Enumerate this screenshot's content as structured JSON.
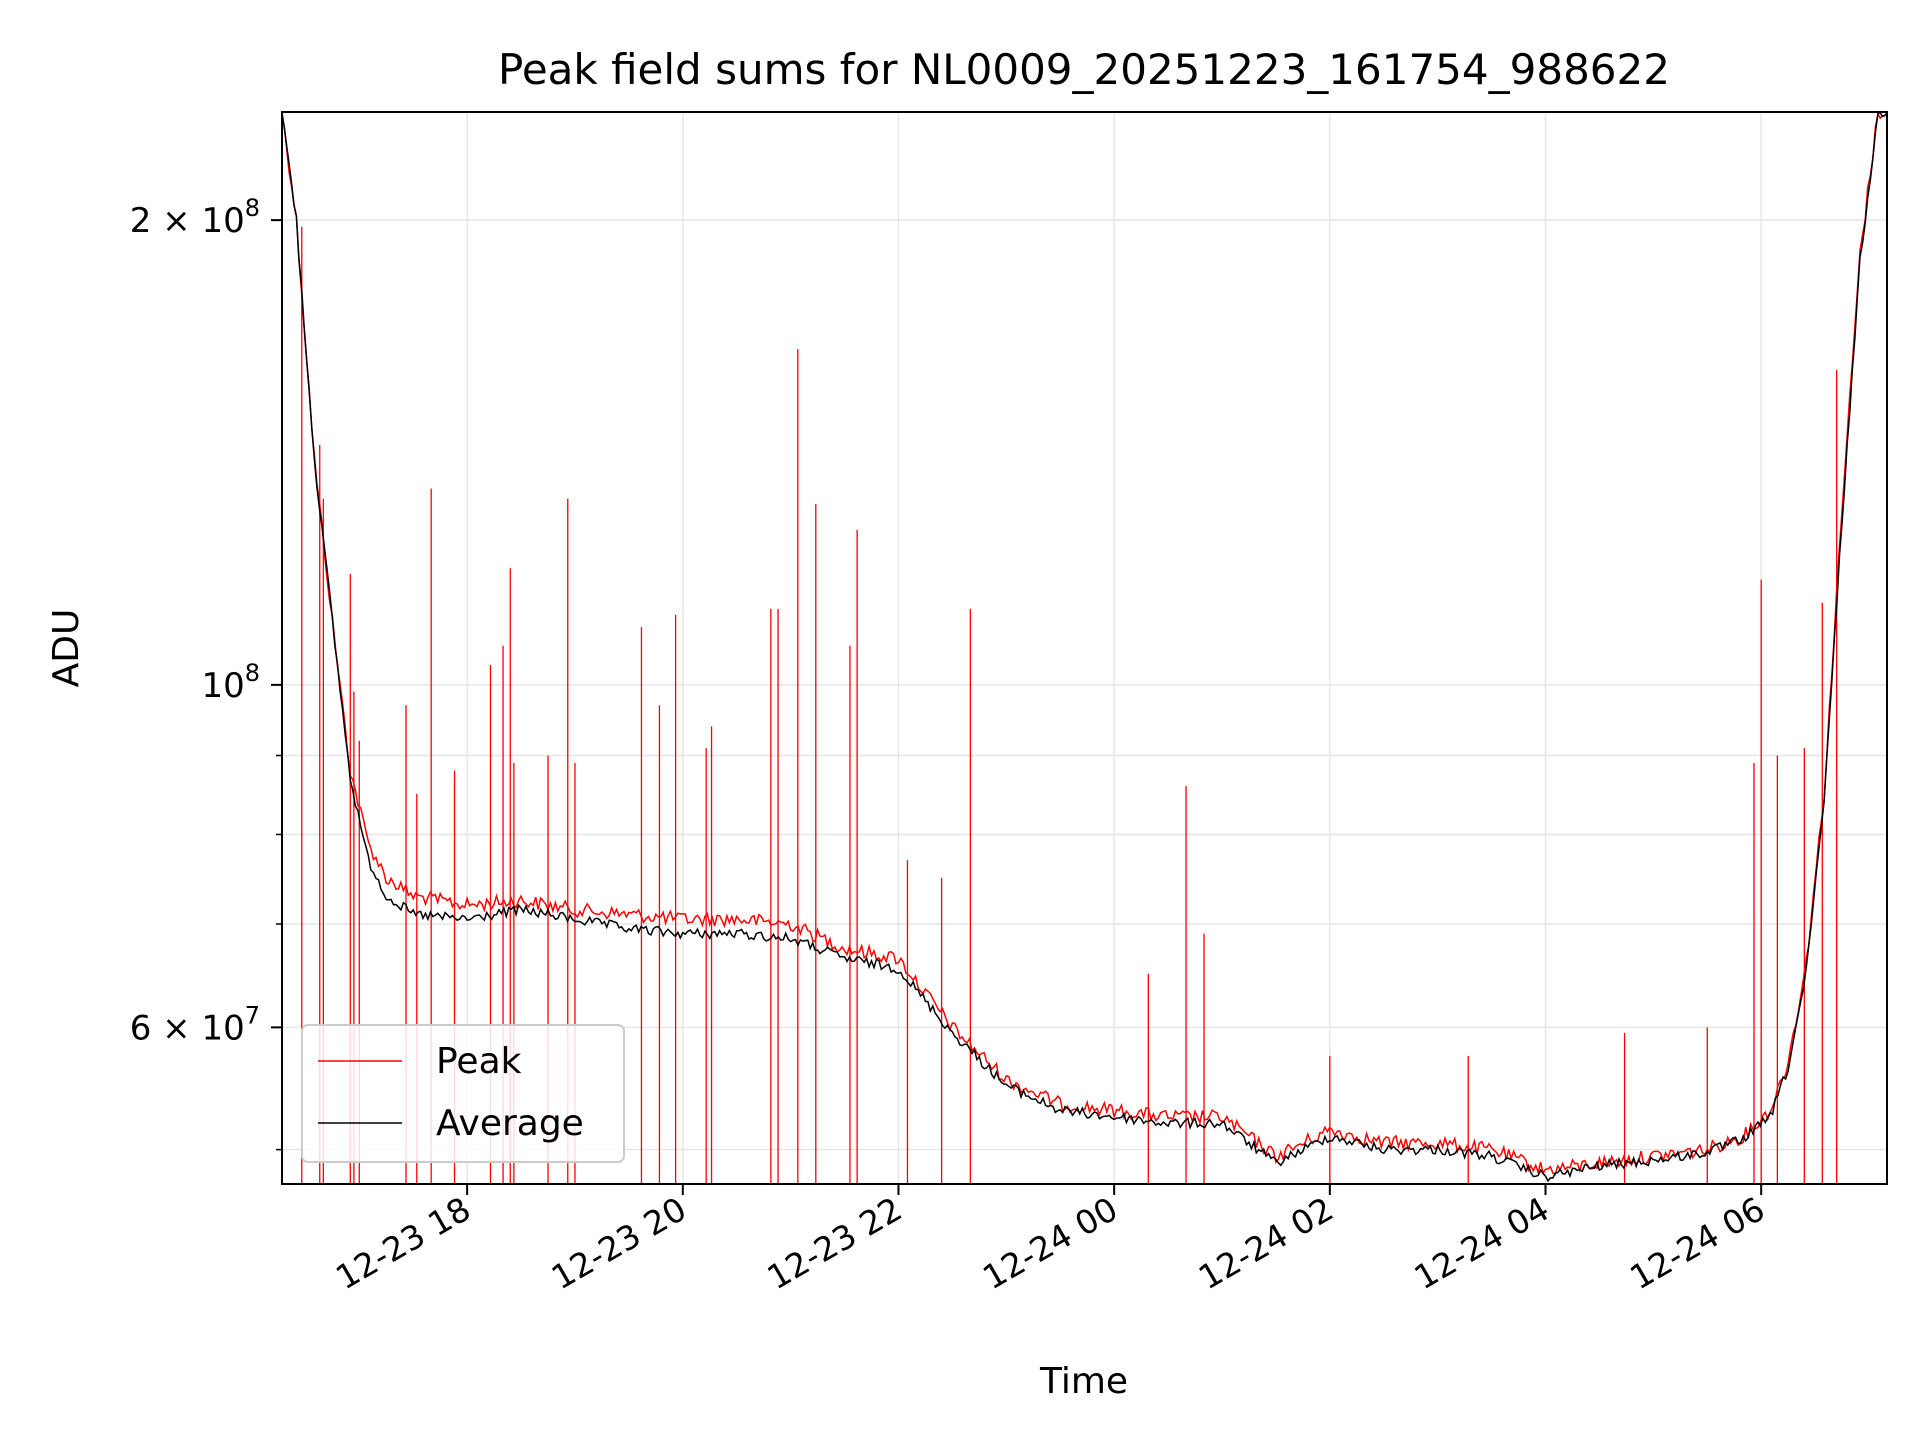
{
  "chart_data": {
    "type": "line",
    "title": "Peak field sums for NL0009_20251223_161754_988622",
    "xlabel": "Time",
    "ylabel": "ADU",
    "yscale": "log",
    "grid": true,
    "legend_position": "lower-left",
    "xlim": [
      "2025-12-23 16:17",
      "2025-12-24 07:10"
    ],
    "ylim": [
      47500000,
      235000000
    ],
    "x_ticks": [
      {
        "value": "2025-12-23 18:00",
        "label": "12-23 18"
      },
      {
        "value": "2025-12-23 20:00",
        "label": "12-23 20"
      },
      {
        "value": "2025-12-23 22:00",
        "label": "12-23 22"
      },
      {
        "value": "2025-12-24 00:00",
        "label": "12-24 00"
      },
      {
        "value": "2025-12-24 02:00",
        "label": "12-24 02"
      },
      {
        "value": "2025-12-24 04:00",
        "label": "12-24 04"
      },
      {
        "value": "2025-12-24 06:00",
        "label": "12-24 06"
      }
    ],
    "y_ticks": [
      {
        "value": 200000000,
        "label": "2 × 10^8",
        "mant": "2 × 10",
        "exp": "8"
      },
      {
        "value": 100000000,
        "label": "10^8",
        "mant": "10",
        "exp": "8"
      },
      {
        "value": 60000000,
        "label": "6 × 10^7",
        "mant": "6 × 10",
        "exp": "7"
      }
    ],
    "y_minor_ticks": [
      50000000,
      70000000,
      80000000,
      90000000
    ],
    "series": [
      {
        "name": "Peak",
        "color": "#ff0000",
        "points": [
          [
            "2025-12-23 16:17",
            235000000
          ],
          [
            "2025-12-23 16:25",
            200000000
          ],
          [
            "2025-12-23 16:35",
            140000000
          ],
          [
            "2025-12-23 16:45",
            110000000
          ],
          [
            "2025-12-23 16:55",
            88000000
          ],
          [
            "2025-12-23 17:05",
            79000000
          ],
          [
            "2025-12-23 17:15",
            75000000
          ],
          [
            "2025-12-23 17:30",
            73000000
          ],
          [
            "2025-12-23 18:00",
            72000000
          ],
          [
            "2025-12-23 18:30",
            72500000
          ],
          [
            "2025-12-23 19:00",
            71500000
          ],
          [
            "2025-12-23 19:30",
            71000000
          ],
          [
            "2025-12-23 20:00",
            70500000
          ],
          [
            "2025-12-23 20:30",
            70500000
          ],
          [
            "2025-12-23 21:00",
            70000000
          ],
          [
            "2025-12-23 21:30",
            67500000
          ],
          [
            "2025-12-23 22:00",
            66500000
          ],
          [
            "2025-12-23 22:30",
            60000000
          ],
          [
            "2025-12-23 23:00",
            55500000
          ],
          [
            "2025-12-23 23:30",
            53500000
          ],
          [
            "2025-12-24 00:00",
            53000000
          ],
          [
            "2025-12-24 00:30",
            52500000
          ],
          [
            "2025-12-24 01:00",
            52500000
          ],
          [
            "2025-12-24 01:30",
            49500000
          ],
          [
            "2025-12-24 02:00",
            51500000
          ],
          [
            "2025-12-24 02:30",
            50500000
          ],
          [
            "2025-12-24 03:00",
            50500000
          ],
          [
            "2025-12-24 03:30",
            50000000
          ],
          [
            "2025-12-24 04:00",
            48500000
          ],
          [
            "2025-12-24 04:30",
            49000000
          ],
          [
            "2025-12-24 05:00",
            49500000
          ],
          [
            "2025-12-24 05:30",
            50000000
          ],
          [
            "2025-12-24 05:50",
            51000000
          ],
          [
            "2025-12-24 06:05",
            53000000
          ],
          [
            "2025-12-24 06:15",
            57000000
          ],
          [
            "2025-12-24 06:25",
            66000000
          ],
          [
            "2025-12-24 06:35",
            85000000
          ],
          [
            "2025-12-24 06:45",
            130000000
          ],
          [
            "2025-12-24 06:55",
            190000000
          ],
          [
            "2025-12-24 07:05",
            235000000
          ],
          [
            "2025-12-24 07:10",
            235000000
          ]
        ],
        "spikes": [
          [
            "2025-12-23 16:28",
            198000000
          ],
          [
            "2025-12-23 16:38",
            143000000
          ],
          [
            "2025-12-23 16:40",
            132000000
          ],
          [
            "2025-12-23 16:55",
            118000000
          ],
          [
            "2025-12-23 16:57",
            99000000
          ],
          [
            "2025-12-23 17:00",
            92000000
          ],
          [
            "2025-12-23 17:26",
            97000000
          ],
          [
            "2025-12-23 17:32",
            85000000
          ],
          [
            "2025-12-23 17:40",
            134000000
          ],
          [
            "2025-12-23 17:53",
            88000000
          ],
          [
            "2025-12-23 18:13",
            103000000
          ],
          [
            "2025-12-23 18:20",
            106000000
          ],
          [
            "2025-12-23 18:24",
            119000000
          ],
          [
            "2025-12-23 18:26",
            89000000
          ],
          [
            "2025-12-23 18:45",
            90000000
          ],
          [
            "2025-12-23 18:56",
            132000000
          ],
          [
            "2025-12-23 19:00",
            89000000
          ],
          [
            "2025-12-23 19:37",
            109000000
          ],
          [
            "2025-12-23 19:47",
            97000000
          ],
          [
            "2025-12-23 19:56",
            111000000
          ],
          [
            "2025-12-23 20:13",
            91000000
          ],
          [
            "2025-12-23 20:16",
            94000000
          ],
          [
            "2025-12-23 20:49",
            112000000
          ],
          [
            "2025-12-23 20:53",
            112000000
          ],
          [
            "2025-12-23 21:04",
            165000000
          ],
          [
            "2025-12-23 21:14",
            131000000
          ],
          [
            "2025-12-23 21:33",
            106000000
          ],
          [
            "2025-12-23 21:37",
            126000000
          ],
          [
            "2025-12-23 22:05",
            77000000
          ],
          [
            "2025-12-23 22:24",
            75000000
          ],
          [
            "2025-12-23 22:40",
            112000000
          ],
          [
            "2025-12-24 00:19",
            65000000
          ],
          [
            "2025-12-24 00:40",
            86000000
          ],
          [
            "2025-12-24 00:50",
            69000000
          ],
          [
            "2025-12-24 02:00",
            57500000
          ],
          [
            "2025-12-24 03:17",
            57500000
          ],
          [
            "2025-12-24 04:44",
            59500000
          ],
          [
            "2025-12-24 05:30",
            60000000
          ],
          [
            "2025-12-24 05:56",
            89000000
          ],
          [
            "2025-12-24 06:00",
            117000000
          ],
          [
            "2025-12-24 06:09",
            90000000
          ],
          [
            "2025-12-24 06:24",
            91000000
          ],
          [
            "2025-12-24 06:34",
            113000000
          ],
          [
            "2025-12-24 06:42",
            160000000
          ]
        ]
      },
      {
        "name": "Average",
        "color": "#000000",
        "points": [
          [
            "2025-12-23 16:17",
            235000000
          ],
          [
            "2025-12-23 16:25",
            200000000
          ],
          [
            "2025-12-23 16:35",
            140000000
          ],
          [
            "2025-12-23 16:45",
            110000000
          ],
          [
            "2025-12-23 16:55",
            87000000
          ],
          [
            "2025-12-23 17:05",
            77000000
          ],
          [
            "2025-12-23 17:15",
            73000000
          ],
          [
            "2025-12-23 17:30",
            71000000
          ],
          [
            "2025-12-23 18:00",
            70500000
          ],
          [
            "2025-12-23 18:30",
            71500000
          ],
          [
            "2025-12-23 19:00",
            70500000
          ],
          [
            "2025-12-23 19:30",
            69500000
          ],
          [
            "2025-12-23 20:00",
            69000000
          ],
          [
            "2025-12-23 20:30",
            69000000
          ],
          [
            "2025-12-23 21:00",
            68500000
          ],
          [
            "2025-12-23 21:30",
            66500000
          ],
          [
            "2025-12-23 22:00",
            65500000
          ],
          [
            "2025-12-23 22:30",
            59500000
          ],
          [
            "2025-12-23 23:00",
            55000000
          ],
          [
            "2025-12-23 23:30",
            53000000
          ],
          [
            "2025-12-24 00:00",
            52500000
          ],
          [
            "2025-12-24 00:30",
            52000000
          ],
          [
            "2025-12-24 01:00",
            52000000
          ],
          [
            "2025-12-24 01:30",
            49000000
          ],
          [
            "2025-12-24 02:00",
            51000000
          ],
          [
            "2025-12-24 02:30",
            50000000
          ],
          [
            "2025-12-24 03:00",
            50000000
          ],
          [
            "2025-12-24 03:30",
            49500000
          ],
          [
            "2025-12-24 04:00",
            48000000
          ],
          [
            "2025-12-24 04:30",
            48800000
          ],
          [
            "2025-12-24 05:00",
            49200000
          ],
          [
            "2025-12-24 05:30",
            49800000
          ],
          [
            "2025-12-24 05:50",
            50800000
          ],
          [
            "2025-12-24 06:05",
            52500000
          ],
          [
            "2025-12-24 06:15",
            56500000
          ],
          [
            "2025-12-24 06:25",
            65000000
          ],
          [
            "2025-12-24 06:35",
            84000000
          ],
          [
            "2025-12-24 06:45",
            128000000
          ],
          [
            "2025-12-24 06:55",
            188000000
          ],
          [
            "2025-12-24 07:05",
            235000000
          ],
          [
            "2025-12-24 07:10",
            235000000
          ]
        ]
      }
    ]
  }
}
